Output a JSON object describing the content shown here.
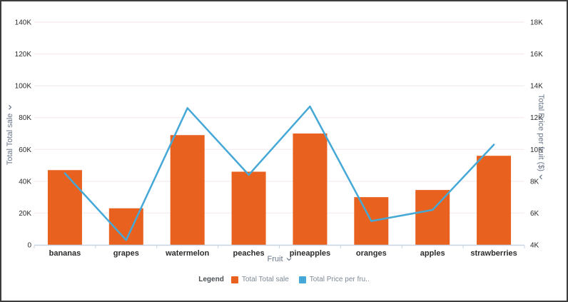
{
  "frame": {
    "background": "#ffffff",
    "border_color": "#3d3d3d"
  },
  "chart_data": {
    "type": "combo-bar-line",
    "title": "",
    "categories": [
      "bananas",
      "grapes",
      "watermelon",
      "peaches",
      "pineapples",
      "oranges",
      "apples",
      "strawberries"
    ],
    "series": [
      {
        "name": "Total Total sale",
        "type": "bar",
        "axis": "left",
        "color": "#e8611f",
        "values": [
          47000,
          23000,
          69000,
          46000,
          70000,
          30000,
          34500,
          56000
        ]
      },
      {
        "name": "Total Price per fruit ($)",
        "type": "line",
        "axis": "right",
        "color": "#45a8d6",
        "values": [
          8500,
          4300,
          12600,
          8400,
          12700,
          5500,
          6200,
          10300
        ]
      }
    ],
    "x_axis": {
      "label": "Fruit"
    },
    "left_axis": {
      "label": "Total Total sale",
      "min": 0,
      "max": 140000,
      "tick_step": 20000,
      "tick_labels": [
        "0",
        "20K",
        "40K",
        "60K",
        "80K",
        "100K",
        "120K",
        "140K"
      ]
    },
    "right_axis": {
      "label": "Total Price per fruit ($)",
      "min": 4000,
      "max": 18000,
      "tick_step": 2000,
      "tick_labels": [
        "4K",
        "6K",
        "8K",
        "10K",
        "12K",
        "14K",
        "16K",
        "18K"
      ]
    },
    "grid": "horizontal",
    "legend": {
      "position": "bottom",
      "label": "Legend",
      "items": [
        {
          "label": "Total Total sale",
          "color": "#e8611f"
        },
        {
          "label": "Total Price per fru..",
          "color": "#45a8d6"
        }
      ]
    }
  },
  "colors": {
    "grid_line": "#f6eef0",
    "axis_line": "#c8d4e2",
    "tick_text": "#2b2b2b",
    "category_text": "#2b2b2b",
    "axis_title_text": "#697588",
    "legend_text": "#7d8a96"
  }
}
